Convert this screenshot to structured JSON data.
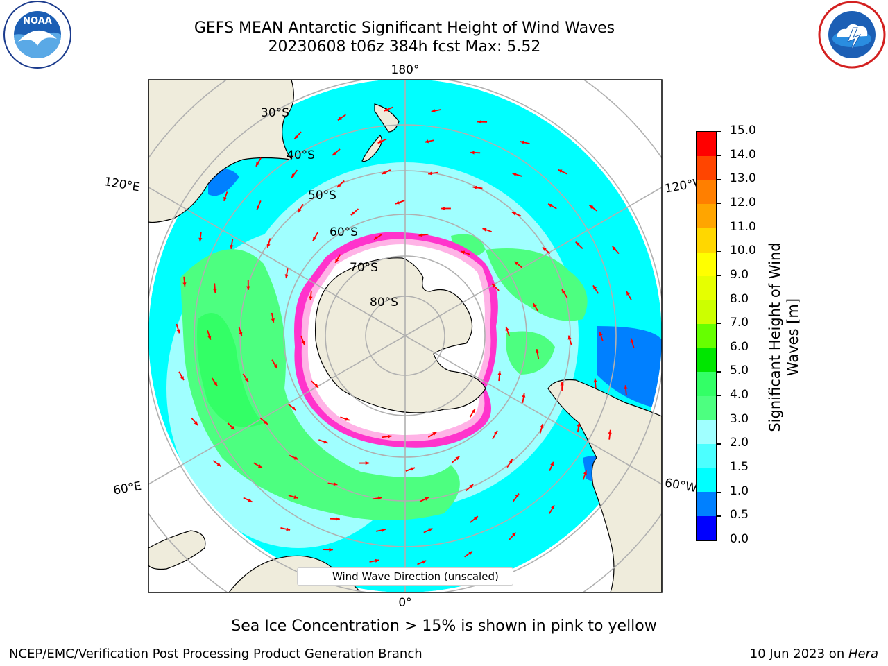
{
  "title": {
    "line1": "GEFS MEAN Antarctic Significant Height of Wind Waves",
    "line2": "20230608 t06z 384h fcst   Max: 5.52"
  },
  "logos": {
    "noaa_text": "NOAA",
    "nws_text": "NATIONAL WEATHER SERVICE"
  },
  "map": {
    "projection": "south-polar-stereographic",
    "lon_labels": {
      "top": "180°",
      "bottom": "0°",
      "left_upper": "120°E",
      "left_lower": "60°E",
      "right_upper": "120°W",
      "right_lower": "60°W"
    },
    "lat_labels": [
      "30°S",
      "40°S",
      "50°S",
      "60°S",
      "70°S",
      "80°S"
    ],
    "legend_label": "Wind Wave Direction (unscaled)",
    "arrow_color": "#ff0000",
    "land_color": "#efecdc",
    "ice_note": "Sea Ice Concentration > 15% is shown in pink to yellow"
  },
  "colorbar": {
    "label_line1": "Significant Height of Wind",
    "label_line2": "Waves [m]",
    "ticks": [
      "0.0",
      "0.5",
      "1.0",
      "1.5",
      "2.0",
      "3.0",
      "4.0",
      "5.0",
      "6.0",
      "7.0",
      "8.0",
      "9.0",
      "10.0",
      "11.0",
      "12.0",
      "13.0",
      "14.0",
      "15.0"
    ],
    "colors": [
      "#0000ff",
      "#0080ff",
      "#00ffff",
      "#4cffff",
      "#a0ffff",
      "#4dff80",
      "#33ff66",
      "#00e600",
      "#66ff00",
      "#ccff00",
      "#e6ff00",
      "#ffff00",
      "#ffd700",
      "#ffa500",
      "#ff7f00",
      "#ff4500",
      "#ff0000"
    ]
  },
  "footer": {
    "left": "NCEP/EMC/Verification Post Processing Product Generation Branch",
    "right_prefix": "10 Jun 2023 on ",
    "right_host": "Hera"
  }
}
